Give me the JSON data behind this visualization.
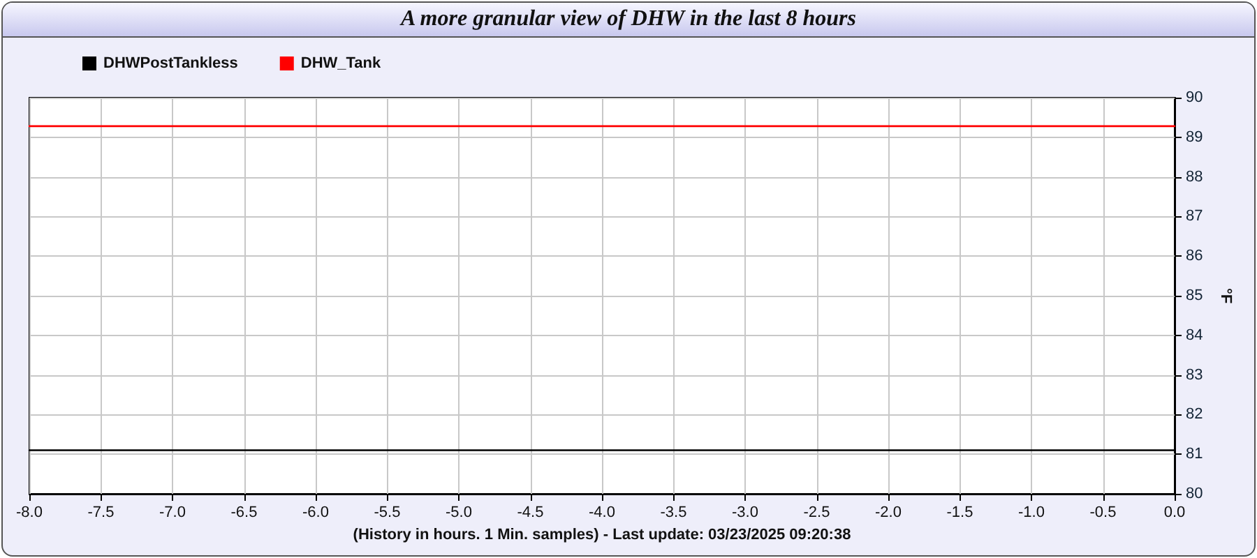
{
  "chart_data": {
    "type": "line",
    "title": "A more granular view of DHW in the last 8 hours",
    "xlabel": "(History in hours. 1 Min. samples) - Last update: 03/23/2025 09:20:38",
    "ylabel": "°F",
    "x": [
      -8,
      0
    ],
    "series": [
      {
        "name": "DHWPostTankless",
        "color": "#000000",
        "values": [
          81.1,
          81.1
        ]
      },
      {
        "name": "DHW_Tank",
        "color": "#ff0000",
        "values": [
          89.28,
          89.28
        ]
      }
    ],
    "xlim": [
      -8,
      0
    ],
    "xticks": [
      {
        "value": -8,
        "label": "-8.0"
      },
      {
        "value": -7.5,
        "label": "-7.5"
      },
      {
        "value": -7,
        "label": "-7.0"
      },
      {
        "value": -6.5,
        "label": "-6.5"
      },
      {
        "value": -6,
        "label": "-6.0"
      },
      {
        "value": -5.5,
        "label": "-5.5"
      },
      {
        "value": -5,
        "label": "-5.0"
      },
      {
        "value": -4.5,
        "label": "-4.5"
      },
      {
        "value": -4,
        "label": "-4.0"
      },
      {
        "value": -3.5,
        "label": "-3.5"
      },
      {
        "value": -3,
        "label": "-3.0"
      },
      {
        "value": -2.5,
        "label": "-2.5"
      },
      {
        "value": -2,
        "label": "-2.0"
      },
      {
        "value": -1.5,
        "label": "-1.5"
      },
      {
        "value": -1,
        "label": "-1.0"
      },
      {
        "value": -0.5,
        "label": "-0.5"
      },
      {
        "value": 0,
        "label": "0.0"
      }
    ],
    "ylim": [
      80,
      90
    ],
    "yticks": [
      80,
      81,
      82,
      83,
      84,
      85,
      86,
      87,
      88,
      89,
      90
    ],
    "grid": true,
    "legend": "top left",
    "marker": "none",
    "line_style": "solid"
  }
}
